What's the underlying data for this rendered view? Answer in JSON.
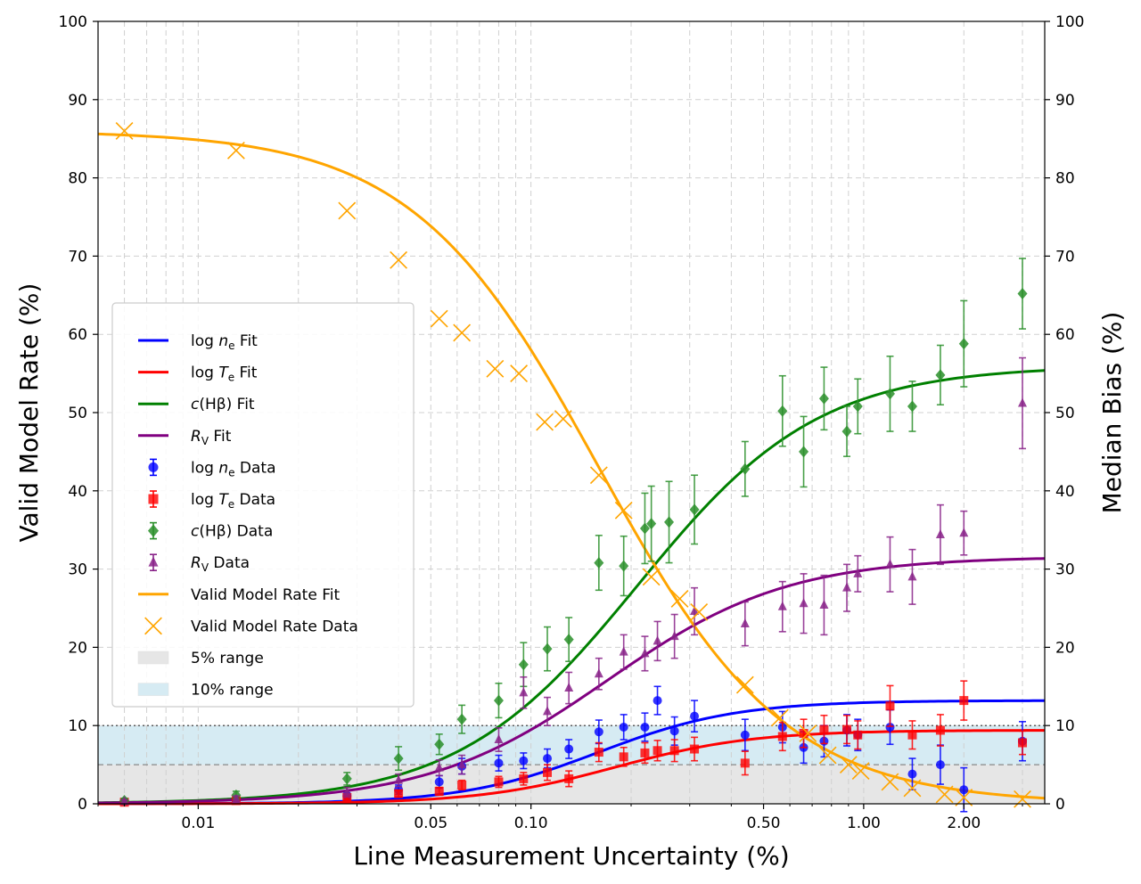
{
  "chart_data": {
    "type": "line",
    "xscale": "log",
    "xlim": [
      0.005,
      3.5
    ],
    "ylim": [
      0,
      100
    ],
    "y2lim": [
      0,
      100
    ],
    "xlabel": "Line Measurement Uncertainty (%)",
    "ylabel": "Valid Model Rate (%)",
    "y2label": "Median Bias (%)",
    "grid": true,
    "legend_position": "center-left",
    "x_tick_values": [
      0.01,
      0.05,
      0.1,
      0.5,
      1.0,
      2.0
    ],
    "x_tick_labels": [
      "0.01",
      "0.05",
      "0.10",
      "0.50",
      "1.00",
      "2.00"
    ],
    "y_ticks": [
      0,
      10,
      20,
      30,
      40,
      50,
      60,
      70,
      80,
      90,
      100
    ],
    "y_tick_labels": [
      "0",
      "10",
      "20",
      "30",
      "40",
      "50",
      "60",
      "70",
      "80",
      "90",
      "100"
    ],
    "reference_lines": [
      {
        "y": 10,
        "style": "dotted",
        "color": "#333333"
      },
      {
        "y": 5,
        "style": "dashed",
        "color": "#888888"
      }
    ],
    "bands": [
      {
        "name": "5% range",
        "y0": 0,
        "y1": 5,
        "color": "#e6e6e6"
      },
      {
        "name": "10% range",
        "y0": 5,
        "y1": 10,
        "color": "#d6ebf3"
      }
    ],
    "fits": [
      {
        "name": "log n_e Fit",
        "color": "#0000ff",
        "upper": 13.2,
        "x50": 0.16,
        "slope": 2.1
      },
      {
        "name": "log T_e Fit",
        "color": "#ff0000",
        "upper": 9.4,
        "x50": 0.18,
        "slope": 2.1
      },
      {
        "name": "c(Hβ) Fit",
        "color": "#008000",
        "upper": 56.0,
        "x50": 0.21,
        "slope": 1.6
      },
      {
        "name": "R_V Fit",
        "color": "#800080",
        "upper": 31.6,
        "x50": 0.17,
        "slope": 1.6
      },
      {
        "name": "Valid Model Rate Fit",
        "color": "#ffa500",
        "upper": 86.0,
        "x50": 0.16,
        "slope": -1.55
      }
    ],
    "series": [
      {
        "name": "log n_e Data",
        "color": "#0000ff",
        "marker": "circle",
        "x": [
          0.006,
          0.013,
          0.028,
          0.04,
          0.053,
          0.062,
          0.08,
          0.095,
          0.112,
          0.13,
          0.16,
          0.19,
          0.22,
          0.24,
          0.27,
          0.31,
          0.44,
          0.57,
          0.66,
          0.76,
          0.89,
          0.96,
          1.2,
          1.4,
          1.7,
          2.0,
          3.0
        ],
        "y": [
          0.3,
          0.5,
          1.0,
          1.8,
          2.8,
          4.8,
          5.2,
          5.5,
          5.8,
          7.0,
          9.2,
          9.8,
          9.8,
          13.2,
          9.3,
          11.2,
          8.8,
          9.8,
          7.2,
          8.0,
          9.4,
          8.8,
          9.8,
          3.8,
          5.0,
          1.8,
          8.0
        ],
        "err": [
          0.2,
          0.3,
          0.4,
          0.6,
          0.8,
          1.0,
          1.0,
          1.0,
          1.2,
          1.2,
          1.5,
          1.6,
          1.8,
          1.8,
          1.8,
          2.0,
          2.0,
          2.0,
          2.0,
          2.0,
          2.0,
          2.0,
          2.2,
          2.0,
          2.5,
          2.8,
          2.5
        ]
      },
      {
        "name": "log T_e Data",
        "color": "#ff0000",
        "marker": "square",
        "x": [
          0.006,
          0.013,
          0.028,
          0.04,
          0.053,
          0.062,
          0.08,
          0.095,
          0.112,
          0.13,
          0.16,
          0.19,
          0.22,
          0.24,
          0.27,
          0.31,
          0.44,
          0.57,
          0.66,
          0.76,
          0.89,
          0.96,
          1.2,
          1.4,
          1.7,
          2.0,
          3.0
        ],
        "y": [
          0.2,
          0.4,
          0.8,
          1.3,
          1.6,
          2.4,
          2.8,
          3.2,
          4.0,
          3.2,
          6.6,
          6.0,
          6.5,
          6.8,
          6.8,
          7.0,
          5.2,
          8.6,
          9.0,
          9.5,
          9.5,
          8.8,
          12.5,
          8.8,
          9.4,
          13.2,
          7.8
        ],
        "err": [
          0.2,
          0.2,
          0.3,
          0.4,
          0.5,
          0.6,
          0.7,
          0.8,
          1.0,
          1.0,
          1.2,
          1.2,
          1.3,
          1.3,
          1.4,
          1.5,
          1.5,
          1.8,
          1.8,
          1.8,
          1.8,
          1.8,
          2.6,
          1.8,
          2.0,
          2.5,
          1.5
        ]
      },
      {
        "name": "c(Hβ) Data",
        "color": "#2a8f2a",
        "marker": "diamond",
        "x": [
          0.006,
          0.013,
          0.028,
          0.04,
          0.053,
          0.062,
          0.08,
          0.095,
          0.112,
          0.13,
          0.16,
          0.19,
          0.22,
          0.23,
          0.26,
          0.31,
          0.44,
          0.57,
          0.66,
          0.76,
          0.89,
          0.96,
          1.2,
          1.4,
          1.7,
          2.0,
          3.0
        ],
        "y": [
          0.4,
          1.1,
          3.2,
          5.8,
          7.6,
          10.8,
          13.2,
          17.8,
          19.8,
          21.0,
          30.8,
          30.4,
          35.2,
          35.8,
          36.0,
          37.6,
          42.8,
          50.2,
          45.0,
          51.8,
          47.6,
          50.8,
          52.4,
          50.8,
          54.8,
          58.8,
          65.2
        ],
        "err": [
          0.3,
          0.5,
          0.8,
          1.5,
          1.3,
          1.8,
          2.2,
          2.8,
          2.8,
          2.8,
          3.5,
          3.8,
          4.5,
          4.8,
          5.2,
          4.4,
          3.5,
          4.5,
          4.5,
          4.0,
          3.2,
          3.5,
          4.8,
          3.2,
          3.8,
          5.5,
          4.5
        ]
      },
      {
        "name": "R_V Data",
        "color": "#882288",
        "marker": "triangle",
        "x": [
          0.006,
          0.013,
          0.028,
          0.04,
          0.053,
          0.062,
          0.08,
          0.095,
          0.112,
          0.13,
          0.16,
          0.19,
          0.22,
          0.24,
          0.27,
          0.31,
          0.44,
          0.57,
          0.66,
          0.76,
          0.89,
          0.96,
          1.2,
          1.4,
          1.7,
          2.0,
          3.0
        ],
        "y": [
          0.3,
          0.6,
          1.5,
          3.0,
          4.6,
          5.0,
          8.2,
          14.2,
          11.8,
          14.8,
          16.6,
          19.4,
          19.2,
          20.8,
          21.4,
          24.6,
          23.0,
          25.2,
          25.6,
          25.4,
          27.6,
          29.4,
          30.6,
          29.0,
          34.4,
          34.6,
          51.2
        ],
        "err": [
          0.2,
          0.4,
          0.6,
          0.8,
          1.0,
          1.2,
          1.5,
          2.0,
          1.8,
          2.0,
          2.0,
          2.2,
          2.2,
          2.5,
          2.8,
          3.0,
          2.8,
          3.2,
          3.8,
          3.8,
          3.0,
          2.3,
          3.5,
          3.5,
          3.8,
          2.8,
          5.8
        ]
      },
      {
        "name": "Valid Model Rate Data",
        "color": "#ffa500",
        "marker": "x",
        "x": [
          0.006,
          0.013,
          0.028,
          0.04,
          0.053,
          0.062,
          0.078,
          0.092,
          0.11,
          0.125,
          0.16,
          0.19,
          0.23,
          0.28,
          0.32,
          0.44,
          0.56,
          0.68,
          0.78,
          0.9,
          0.98,
          1.2,
          1.4,
          1.75,
          2.0,
          3.0
        ],
        "y": [
          86.0,
          83.5,
          75.8,
          69.5,
          62.0,
          60.2,
          55.6,
          55.0,
          48.8,
          49.2,
          42.0,
          37.5,
          29.0,
          26.2,
          24.5,
          15.2,
          11.0,
          9.0,
          6.2,
          5.0,
          4.2,
          2.8,
          2.0,
          1.2,
          0.8,
          0.6
        ],
        "err": []
      }
    ],
    "legend": [
      {
        "label_main": "log ",
        "label_var": "n",
        "label_sub": "e",
        "label_tail": " Fit",
        "kind": "line",
        "color": "#0000ff"
      },
      {
        "label_main": "log ",
        "label_var": "T",
        "label_sub": "e",
        "label_tail": " Fit",
        "kind": "line",
        "color": "#ff0000"
      },
      {
        "label_main": "",
        "label_var": "c",
        "label_sub": "",
        "label_tail": "(Hβ) Fit",
        "kind": "line",
        "color": "#008000"
      },
      {
        "label_main": "",
        "label_var": "R",
        "label_sub": "V",
        "label_tail": " Fit",
        "kind": "line",
        "color": "#800080"
      },
      {
        "label_main": "log ",
        "label_var": "n",
        "label_sub": "e",
        "label_tail": " Data",
        "kind": "circle",
        "color": "#0000ff"
      },
      {
        "label_main": "log ",
        "label_var": "T",
        "label_sub": "e",
        "label_tail": " Data",
        "kind": "square",
        "color": "#ff0000"
      },
      {
        "label_main": "",
        "label_var": "c",
        "label_sub": "",
        "label_tail": "(Hβ) Data",
        "kind": "diamond",
        "color": "#2a8f2a"
      },
      {
        "label_main": "",
        "label_var": "R",
        "label_sub": "V",
        "label_tail": " Data",
        "kind": "triangle",
        "color": "#882288"
      },
      {
        "label_main": "Valid Model Rate Fit",
        "label_var": "",
        "label_sub": "",
        "label_tail": "",
        "kind": "line",
        "color": "#ffa500"
      },
      {
        "label_main": "Valid Model Rate Data",
        "label_var": "",
        "label_sub": "",
        "label_tail": "",
        "kind": "x",
        "color": "#ffa500"
      },
      {
        "label_main": "5% range",
        "label_var": "",
        "label_sub": "",
        "label_tail": "",
        "kind": "patch",
        "color": "#e6e6e6"
      },
      {
        "label_main": "10% range",
        "label_var": "",
        "label_sub": "",
        "label_tail": "",
        "kind": "patch",
        "color": "#d6ebf3"
      }
    ]
  }
}
